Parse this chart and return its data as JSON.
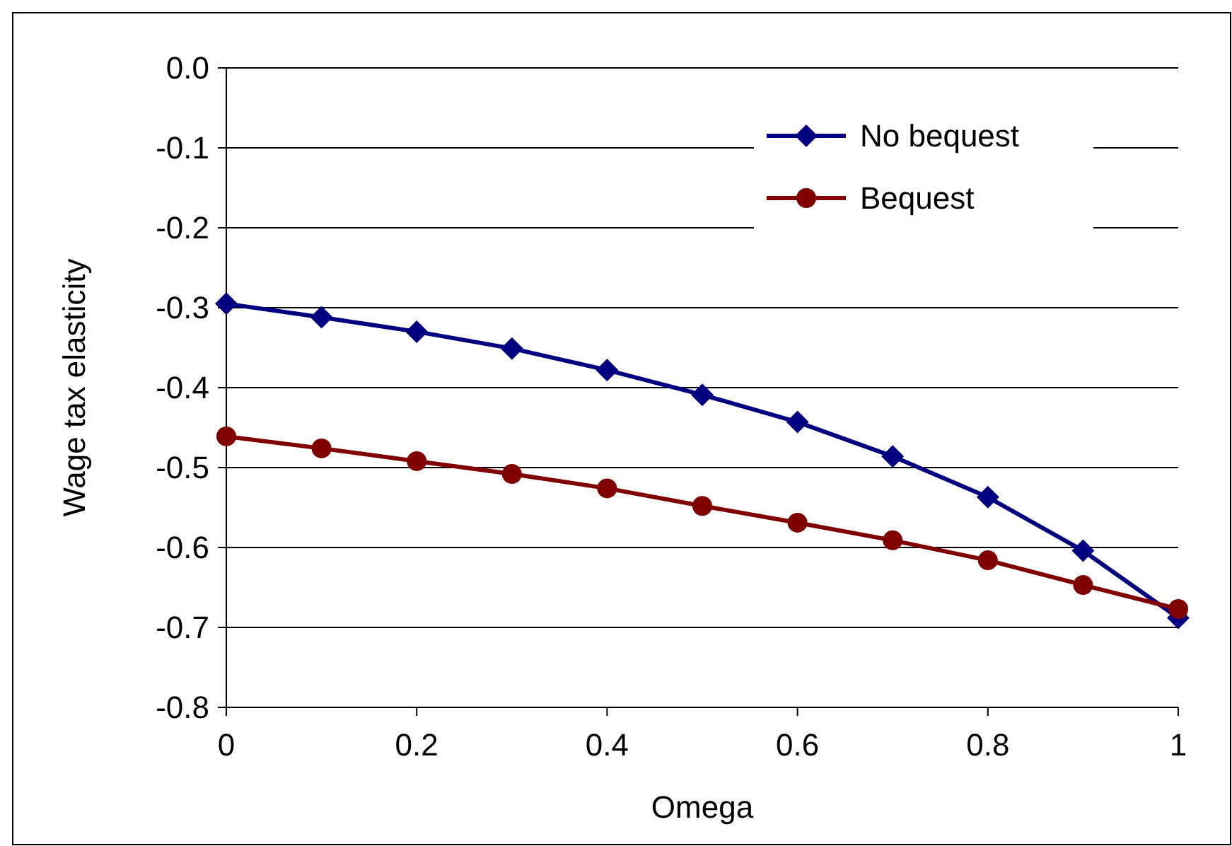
{
  "chart_data": {
    "type": "line",
    "xlabel": "Omega",
    "ylabel": "Wage tax elasticity",
    "x": [
      0,
      0.1,
      0.2,
      0.3,
      0.4,
      0.5,
      0.6,
      0.7,
      0.8,
      0.9,
      1
    ],
    "series": [
      {
        "name": "No bequest",
        "color": "#000080",
        "marker": "diamond",
        "values": [
          -0.295,
          -0.312,
          -0.33,
          -0.351,
          -0.378,
          -0.409,
          -0.443,
          -0.486,
          -0.537,
          -0.604,
          -0.688
        ]
      },
      {
        "name": "Bequest",
        "color": "#800000",
        "marker": "circle",
        "values": [
          -0.461,
          -0.476,
          -0.492,
          -0.508,
          -0.526,
          -0.548,
          -0.569,
          -0.591,
          -0.616,
          -0.647,
          -0.677
        ]
      }
    ],
    "xlim": [
      0,
      1
    ],
    "xticks": [
      0,
      {
        "value": 0.2,
        "label": "0.2"
      },
      {
        "value": 0.4,
        "label": "0.4"
      },
      {
        "value": 0.6,
        "label": "0.6"
      },
      {
        "value": 0.8,
        "label": "0.8"
      },
      1
    ],
    "ylim": [
      -0.8,
      0
    ],
    "yticks": [
      {
        "value": -0.8,
        "label": "-0.8"
      },
      {
        "value": -0.7,
        "label": "-0.7"
      },
      {
        "value": -0.6,
        "label": "-0.6"
      },
      {
        "value": -0.5,
        "label": "-0.5"
      },
      {
        "value": -0.4,
        "label": "-0.4"
      },
      {
        "value": -0.3,
        "label": "-0.3"
      },
      {
        "value": -0.2,
        "label": "-0.2"
      },
      {
        "value": -0.1,
        "label": "-0.1"
      },
      {
        "value": 0,
        "label": "0.0"
      }
    ],
    "grid": "y",
    "legend": "top right",
    "line_style": "solid"
  }
}
